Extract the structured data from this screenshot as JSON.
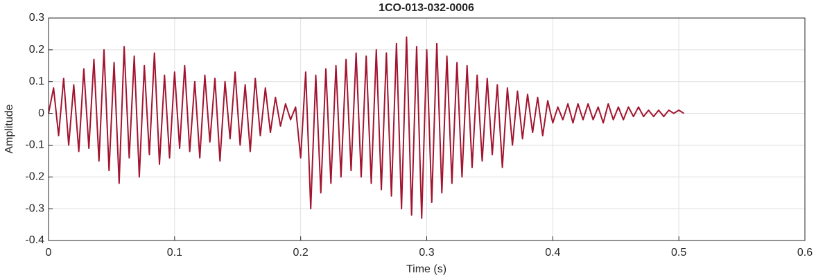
{
  "chart_data": {
    "type": "line",
    "title": "1CO-013-032-0006",
    "x_label": "Time (s)",
    "y_label": "Amplitude",
    "color": "#a2142f",
    "grid": true,
    "xlim": [
      0,
      0.6
    ],
    "xticks": [
      0,
      0.1,
      0.2,
      0.3,
      0.4,
      0.5,
      0.6
    ],
    "ylim": [
      -0.4,
      0.3
    ],
    "yticks": [
      -0.4,
      -0.3,
      -0.2,
      -0.1,
      0,
      0.1,
      0.2,
      0.3
    ],
    "x": [
      0,
      0.004,
      0.008,
      0.012,
      0.016,
      0.02,
      0.024,
      0.028,
      0.032,
      0.036,
      0.04,
      0.044,
      0.048,
      0.052,
      0.056,
      0.06,
      0.064,
      0.068,
      0.072,
      0.076,
      0.08,
      0.084,
      0.088,
      0.092,
      0.096,
      0.1,
      0.104,
      0.108,
      0.112,
      0.116,
      0.12,
      0.124,
      0.128,
      0.132,
      0.136,
      0.14,
      0.144,
      0.148,
      0.152,
      0.156,
      0.16,
      0.164,
      0.168,
      0.172,
      0.176,
      0.18,
      0.184,
      0.188,
      0.192,
      0.196,
      0.2,
      0.204,
      0.208,
      0.212,
      0.216,
      0.22,
      0.224,
      0.228,
      0.232,
      0.236,
      0.24,
      0.244,
      0.248,
      0.252,
      0.256,
      0.26,
      0.264,
      0.268,
      0.272,
      0.276,
      0.28,
      0.284,
      0.288,
      0.292,
      0.296,
      0.3,
      0.304,
      0.308,
      0.312,
      0.316,
      0.32,
      0.324,
      0.328,
      0.332,
      0.336,
      0.34,
      0.344,
      0.348,
      0.352,
      0.356,
      0.36,
      0.364,
      0.368,
      0.372,
      0.376,
      0.38,
      0.384,
      0.388,
      0.392,
      0.396,
      0.4,
      0.404,
      0.408,
      0.412,
      0.416,
      0.42,
      0.424,
      0.428,
      0.432,
      0.436,
      0.44,
      0.444,
      0.448,
      0.452,
      0.456,
      0.46,
      0.464,
      0.468,
      0.472,
      0.476,
      0.48,
      0.484,
      0.488,
      0.492,
      0.496,
      0.5,
      0.504
    ],
    "values": [
      0,
      0.08,
      -0.07,
      0.11,
      -0.1,
      0.09,
      -0.12,
      0.14,
      -0.11,
      0.17,
      -0.15,
      0.2,
      -0.18,
      0.16,
      -0.22,
      0.21,
      -0.14,
      0.18,
      -0.2,
      0.15,
      -0.13,
      0.19,
      -0.16,
      0.12,
      -0.14,
      0.13,
      -0.11,
      0.15,
      -0.12,
      0.1,
      -0.14,
      0.12,
      -0.09,
      0.11,
      -0.15,
      0.1,
      -0.08,
      0.13,
      -0.1,
      0.09,
      -0.12,
      0.11,
      -0.07,
      0.08,
      -0.06,
      0.05,
      -0.04,
      0.03,
      -0.02,
      0.02,
      -0.14,
      0.13,
      -0.3,
      0.12,
      -0.25,
      0.14,
      -0.22,
      0.15,
      -0.2,
      0.17,
      -0.18,
      0.19,
      -0.2,
      0.18,
      -0.22,
      0.2,
      -0.24,
      0.19,
      -0.26,
      0.22,
      -0.3,
      0.24,
      -0.32,
      0.21,
      -0.33,
      0.2,
      -0.28,
      0.22,
      -0.25,
      0.18,
      -0.22,
      0.16,
      -0.2,
      0.15,
      -0.17,
      0.12,
      -0.15,
      0.11,
      -0.13,
      0.09,
      -0.17,
      0.08,
      -0.1,
      0.07,
      -0.08,
      0.06,
      -0.06,
      0.05,
      -0.07,
      0.04,
      -0.03,
      0.02,
      -0.02,
      0.03,
      -0.03,
      0.03,
      -0.02,
      0.03,
      -0.02,
      0.02,
      -0.03,
      0.03,
      -0.02,
      0.02,
      -0.02,
      0.02,
      -0.01,
      0.02,
      -0.01,
      0.01,
      -0.01,
      0.01,
      -0.01,
      0.01,
      0,
      0.01,
      0
    ]
  }
}
